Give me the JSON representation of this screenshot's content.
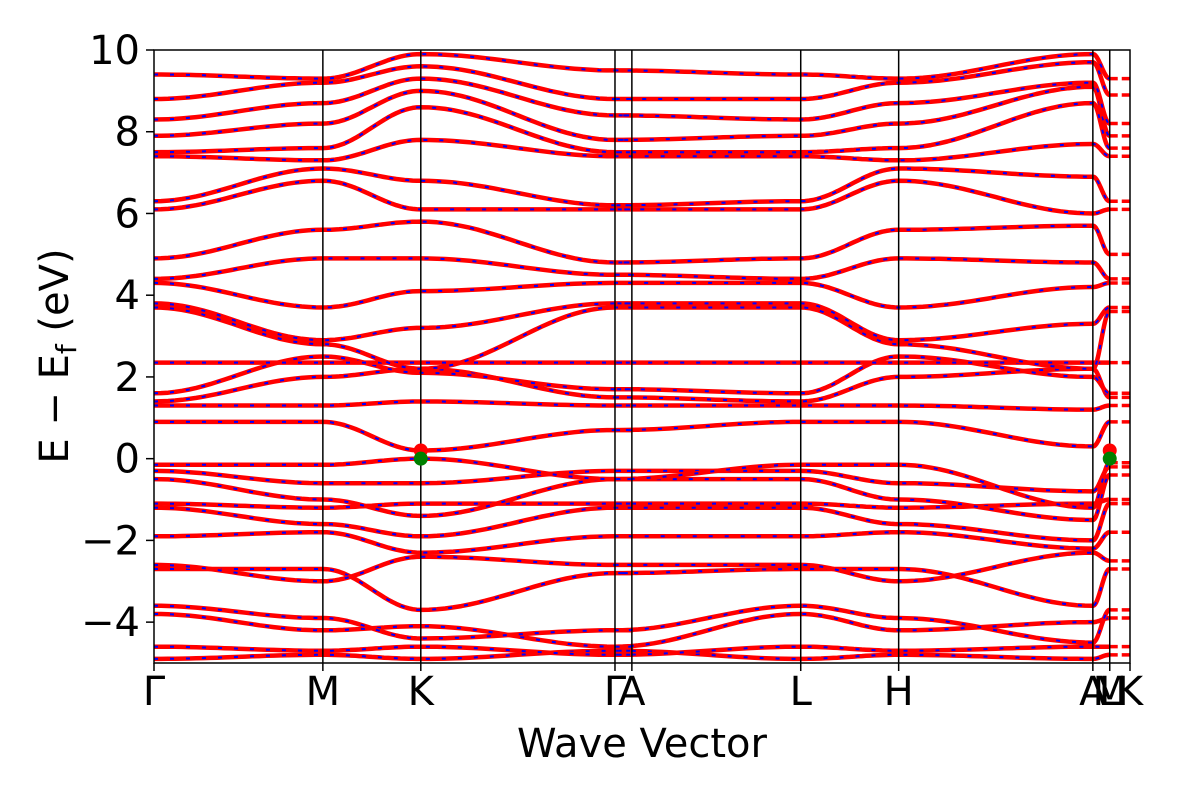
{
  "chart_data": {
    "type": "line",
    "title": "",
    "xlabel": "Wave Vector",
    "ylabel": "E − E",
    "ylabel_subscript": "f",
    "ylabel_unit": " (eV)",
    "ylim": [
      -5,
      10
    ],
    "yticks": [
      -4,
      -2,
      0,
      2,
      4,
      6,
      8,
      10
    ],
    "ytick_labels": [
      "−4",
      "−2",
      "0",
      "2",
      "4",
      "6",
      "8",
      "10"
    ],
    "xlim": [
      0,
      5.78
    ],
    "kpath": [
      {
        "label": "Γ",
        "x": 0.0
      },
      {
        "label": "M",
        "x": 1.0
      },
      {
        "label": "K",
        "x": 1.58
      },
      {
        "label": "Γ",
        "x": 2.73
      },
      {
        "label": "A",
        "x": 2.83
      },
      {
        "label": "L",
        "x": 3.83
      },
      {
        "label": "H",
        "x": 4.41
      },
      {
        "label": "A",
        "x": 5.56
      },
      {
        "label": "M",
        "x": 5.66
      },
      {
        "label": "L",
        "x": 5.66
      },
      {
        "label": "K",
        "x": 5.78
      }
    ],
    "kpath_lines": [
      1.0,
      1.58,
      2.73,
      2.83,
      3.83,
      4.41,
      5.56,
      5.66
    ],
    "series": [
      {
        "name": "",
        "color": "#ff0000",
        "style": "solid"
      },
      {
        "name": "",
        "color": "#0000ff",
        "style": "dashed"
      }
    ],
    "bands": [
      [
        -4.9,
        -4.8,
        -4.9,
        -4.7,
        -4.9,
        -4.8,
        -4.9,
        -4.8
      ],
      [
        -4.6,
        -4.7,
        -4.6,
        -4.8,
        -4.6,
        -4.7,
        -4.6,
        -4.6
      ],
      [
        -3.8,
        -4.2,
        -4.1,
        -4.6,
        -3.8,
        -4.2,
        -4.0,
        -3.9
      ],
      [
        -3.6,
        -3.9,
        -4.4,
        -4.2,
        -3.6,
        -3.9,
        -4.5,
        -3.7
      ],
      [
        -2.7,
        -2.7,
        -3.7,
        -2.8,
        -2.7,
        -2.7,
        -3.6,
        -2.7
      ],
      [
        -2.6,
        -3.0,
        -2.4,
        -2.6,
        -2.6,
        -3.0,
        -2.3,
        -2.5
      ],
      [
        -1.9,
        -1.8,
        -2.3,
        -1.9,
        -1.9,
        -1.8,
        -2.2,
        -1.8
      ],
      [
        -1.2,
        -1.6,
        -1.9,
        -1.2,
        -1.2,
        -1.6,
        -2.0,
        -1.1
      ],
      [
        -1.1,
        -1.2,
        -1.1,
        -1.1,
        -1.1,
        -1.2,
        -1.1,
        -1.0
      ],
      [
        -0.5,
        -1.0,
        -1.4,
        -0.5,
        -0.5,
        -1.0,
        -1.5,
        -0.4
      ],
      [
        -0.3,
        -0.6,
        -0.6,
        -0.3,
        -0.3,
        -0.6,
        -0.8,
        -0.2
      ],
      [
        -0.15,
        -0.15,
        0.0,
        -0.5,
        -0.15,
        -0.15,
        -1.2,
        -0.1
      ],
      [
        0.9,
        0.9,
        0.2,
        0.7,
        0.9,
        0.9,
        0.3,
        0.9
      ],
      [
        1.3,
        1.3,
        1.4,
        1.3,
        1.3,
        1.3,
        1.2,
        1.3
      ],
      [
        1.4,
        2.0,
        2.2,
        1.5,
        1.4,
        2.0,
        2.2,
        1.5
      ],
      [
        1.6,
        2.5,
        2.1,
        1.7,
        1.6,
        2.5,
        2.0,
        1.6
      ],
      [
        2.35,
        2.35,
        2.35,
        2.35,
        2.35,
        2.35,
        2.35,
        2.35
      ],
      [
        3.7,
        2.8,
        2.2,
        3.7,
        3.7,
        2.8,
        2.2,
        3.6
      ],
      [
        3.8,
        2.9,
        3.2,
        3.8,
        3.8,
        2.9,
        3.3,
        3.7
      ],
      [
        4.3,
        3.7,
        4.1,
        4.3,
        4.3,
        3.7,
        4.2,
        4.3
      ],
      [
        4.4,
        4.9,
        4.9,
        4.5,
        4.4,
        4.9,
        4.8,
        4.4
      ],
      [
        4.9,
        5.6,
        5.8,
        4.8,
        4.9,
        5.6,
        5.7,
        5.0
      ],
      [
        6.1,
        6.8,
        6.1,
        6.1,
        6.1,
        6.8,
        6.0,
        6.1
      ],
      [
        6.3,
        7.1,
        6.8,
        6.2,
        6.3,
        7.1,
        6.9,
        6.3
      ],
      [
        7.4,
        7.3,
        7.8,
        7.4,
        7.4,
        7.3,
        7.7,
        7.4
      ],
      [
        7.5,
        7.6,
        8.6,
        7.5,
        7.5,
        7.6,
        8.7,
        7.6
      ],
      [
        7.9,
        8.2,
        9.0,
        7.8,
        7.9,
        8.2,
        9.1,
        7.9
      ],
      [
        8.3,
        8.7,
        9.3,
        8.4,
        8.3,
        8.7,
        9.2,
        8.2
      ],
      [
        8.8,
        9.2,
        9.6,
        8.8,
        8.8,
        9.2,
        9.7,
        8.9
      ],
      [
        9.4,
        9.3,
        9.9,
        9.5,
        9.4,
        9.3,
        9.9,
        9.3
      ]
    ],
    "vbm_marker": {
      "x": 1.58,
      "y": 0.0,
      "color": "#008000"
    },
    "cbm_marker": {
      "x": 1.58,
      "y": 0.2,
      "color": "#ff0000"
    }
  }
}
